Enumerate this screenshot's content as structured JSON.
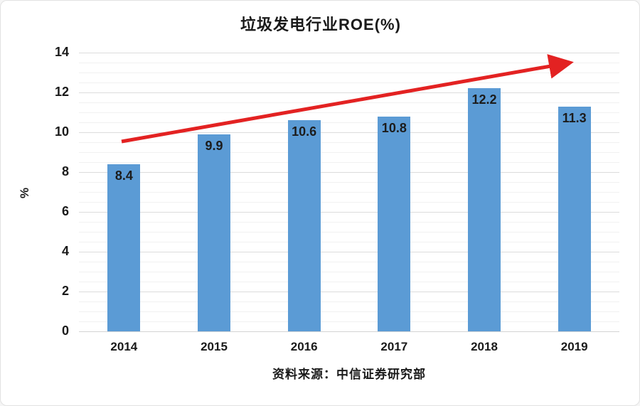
{
  "chart_data": {
    "type": "bar",
    "title": "垃圾发电行业ROE(%)",
    "categories": [
      "2014",
      "2015",
      "2016",
      "2017",
      "2018",
      "2019"
    ],
    "values": [
      8.4,
      9.9,
      10.6,
      10.8,
      12.2,
      11.3
    ],
    "data_labels": [
      "8.4",
      "9.9",
      "10.6",
      "10.8",
      "12.2",
      "11.3"
    ],
    "xlabel": "",
    "ylabel": "%",
    "ylim": [
      0,
      14
    ],
    "yticks": [
      0,
      2,
      4,
      6,
      8,
      10,
      12,
      14
    ],
    "minor_grid_step": 0.5,
    "grid": "horizontal, major and minor lines",
    "legend": "none",
    "source_note": "资料来源：中信证券研究部",
    "annotations": [
      {
        "type": "arrow",
        "description": "red straight trend arrow rising left-to-right above the bars",
        "from_value_approx": 9.5,
        "to_value_approx": 13.6
      }
    ],
    "colors": {
      "bar": "#5b9bd5",
      "data_label": "#1c1c1c",
      "arrow": "#e32222",
      "axis_text": "#1a1a1a",
      "gridline_major": "#dcdcdc",
      "gridline_minor": "#f1f1f1",
      "background": "#ffffff"
    }
  }
}
